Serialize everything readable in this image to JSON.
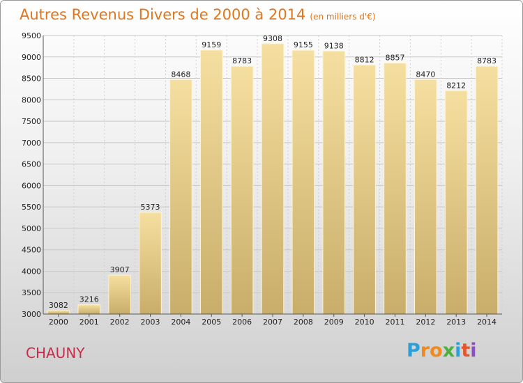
{
  "chart_data": {
    "type": "bar",
    "title": "Autres Revenus Divers de 2000 à 2014",
    "subtitle": "(en milliers d'€)",
    "categories": [
      "2000",
      "2001",
      "2002",
      "2003",
      "2004",
      "2005",
      "2006",
      "2007",
      "2008",
      "2009",
      "2010",
      "2011",
      "2012",
      "2013",
      "2014"
    ],
    "values": [
      3082,
      3216,
      3907,
      5373,
      8468,
      9159,
      8783,
      9308,
      9155,
      9138,
      8812,
      8857,
      8470,
      8212,
      8783
    ],
    "ylim": [
      3000,
      9500
    ],
    "yticks": [
      3000,
      3500,
      4000,
      4500,
      5000,
      5500,
      6000,
      6500,
      7000,
      7500,
      8000,
      8500,
      9000,
      9500
    ],
    "grid": true,
    "bar_color_top": "#f5dfa0",
    "bar_color_bottom": "#c9ad6a"
  },
  "footer": {
    "commune": "CHAUNY",
    "brand_letters": [
      "P",
      "r",
      "o",
      "x",
      "i",
      "t",
      "i"
    ],
    "brand_colors": [
      "#2d9fd8",
      "#f08a1c",
      "#f08a1c",
      "#4caf3e",
      "#2d9fd8",
      "#e4572e",
      "#8a4fc2"
    ]
  }
}
